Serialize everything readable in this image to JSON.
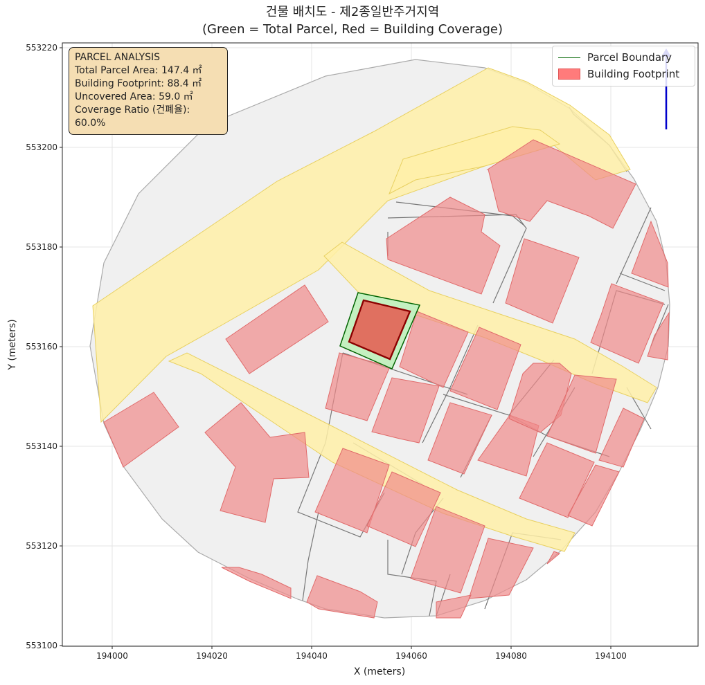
{
  "title": {
    "line1": "건물 배치도 - 제2종일반주거지역",
    "line2": "(Green = Total Parcel, Red = Building Coverage)"
  },
  "info_box": {
    "heading": "PARCEL ANALYSIS",
    "lines": [
      "Total Parcel Area: 147.4 ㎡",
      "Building Footprint: 88.4 ㎡",
      "Uncovered Area: 59.0 ㎡",
      "Coverage Ratio (건폐율): 60.0%"
    ]
  },
  "legend": {
    "items": [
      {
        "label": "Parcel Boundary",
        "kind": "line",
        "color": "#006400"
      },
      {
        "label": "Building Footprint",
        "kind": "patch",
        "color": "#ff7b7b"
      }
    ]
  },
  "axes": {
    "xlabel": "X (meters)",
    "ylabel": "Y (meters)",
    "xticks": [
      "194000",
      "194020",
      "194040",
      "194060",
      "194080",
      "194100"
    ],
    "yticks": [
      "553100",
      "553120",
      "553140",
      "553160",
      "553180",
      "553200",
      "553220"
    ]
  },
  "colors": {
    "road": "#fff0a8",
    "road_edge": "#e8d060",
    "building": "#f2a3a3",
    "building_edge": "#e07070",
    "lot_fill": "#f0f0f0",
    "lot_edge": "#777777",
    "target_parcel": "#c4f0c0",
    "target_building": "#e07060",
    "north_arrow": "#0000cc"
  }
}
